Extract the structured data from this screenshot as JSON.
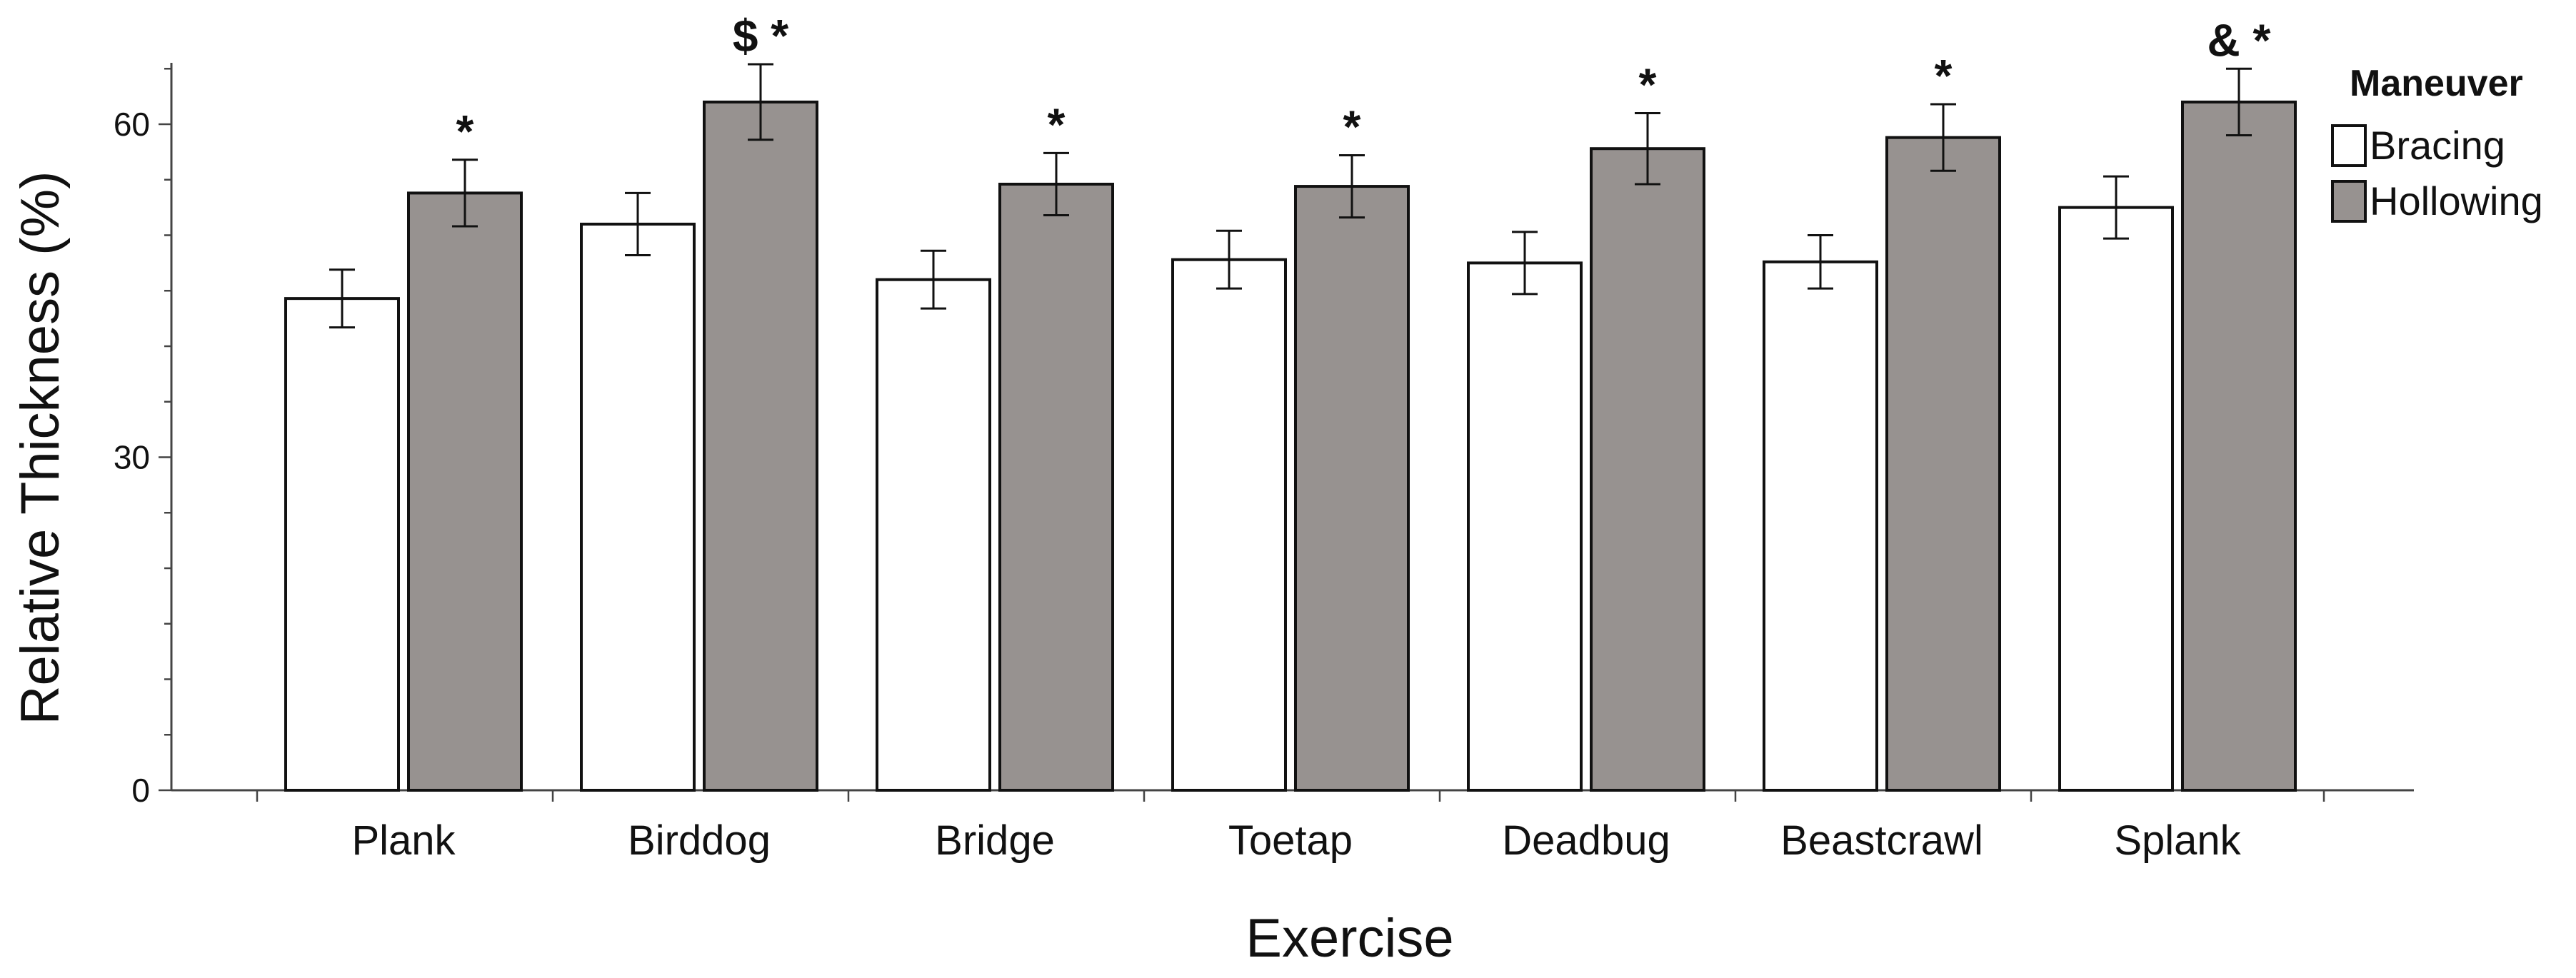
{
  "chart_data": {
    "type": "bar",
    "title": "",
    "xlabel": "Exercise",
    "ylabel": "Relative Thickness (%)",
    "ylim": [
      0,
      65
    ],
    "yticks": [
      "0",
      "30",
      "60"
    ],
    "categories": [
      "Plank",
      "Birddog",
      "Bridge",
      "Toetap",
      "Deadbug",
      "Beastcrawl",
      "Splank"
    ],
    "series": [
      {
        "name": "Bracing",
        "color": "#ffffff",
        "values": [
          44.3,
          51.0,
          46.0,
          47.8,
          47.5,
          47.6,
          52.5
        ],
        "errors": [
          2.6,
          2.8,
          2.6,
          2.6,
          2.8,
          2.4,
          2.8
        ]
      },
      {
        "name": "Hollowing",
        "color": "#979290",
        "values": [
          53.8,
          62.0,
          54.6,
          54.4,
          57.8,
          58.8,
          62.0
        ],
        "errors": [
          3.0,
          3.4,
          2.8,
          2.8,
          3.2,
          3.0,
          3.0
        ]
      }
    ],
    "annotations": [
      "*",
      "$ *",
      "*",
      "*",
      "*",
      "*",
      "& *"
    ],
    "legend": {
      "title": "Maneuver",
      "position": "top-right"
    },
    "grid": false
  }
}
